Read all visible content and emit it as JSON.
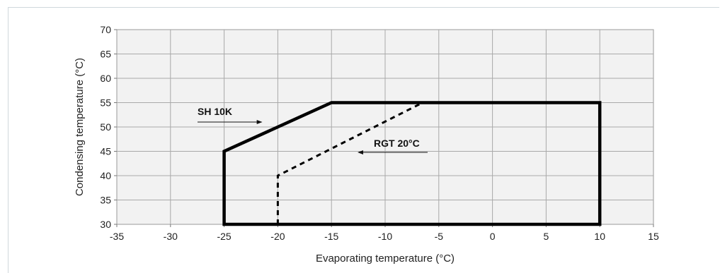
{
  "chart_data": {
    "type": "line",
    "title": "",
    "xlabel": "Evaporating temperature (°C)",
    "ylabel": "Condensing temperature (°C)",
    "xlim": [
      -35,
      15
    ],
    "ylim": [
      30,
      70
    ],
    "x_ticks": [
      "-35",
      "-30",
      "-25",
      "-20",
      "-15",
      "-10",
      "-5",
      "0",
      "5",
      "10",
      "15"
    ],
    "y_ticks": [
      "30",
      "35",
      "40",
      "45",
      "50",
      "55",
      "60",
      "65",
      "70"
    ],
    "grid": true,
    "series": [
      {
        "name": "SH 10K",
        "style": "solid",
        "points": [
          [
            -25,
            30
          ],
          [
            -25,
            45
          ],
          [
            -15,
            55
          ],
          [
            10,
            55
          ],
          [
            10,
            30
          ],
          [
            -25,
            30
          ]
        ]
      },
      {
        "name": "RGT 20°C",
        "style": "dashed",
        "points": [
          [
            -20,
            30
          ],
          [
            -20,
            40
          ],
          [
            -6.5,
            55
          ]
        ]
      }
    ],
    "annotations": [
      {
        "text": "SH 10K",
        "points_to": [
          -21.5,
          48.5
        ]
      },
      {
        "text": "RGT 20°C",
        "points_to": [
          -12.5,
          44.5
        ]
      }
    ]
  }
}
